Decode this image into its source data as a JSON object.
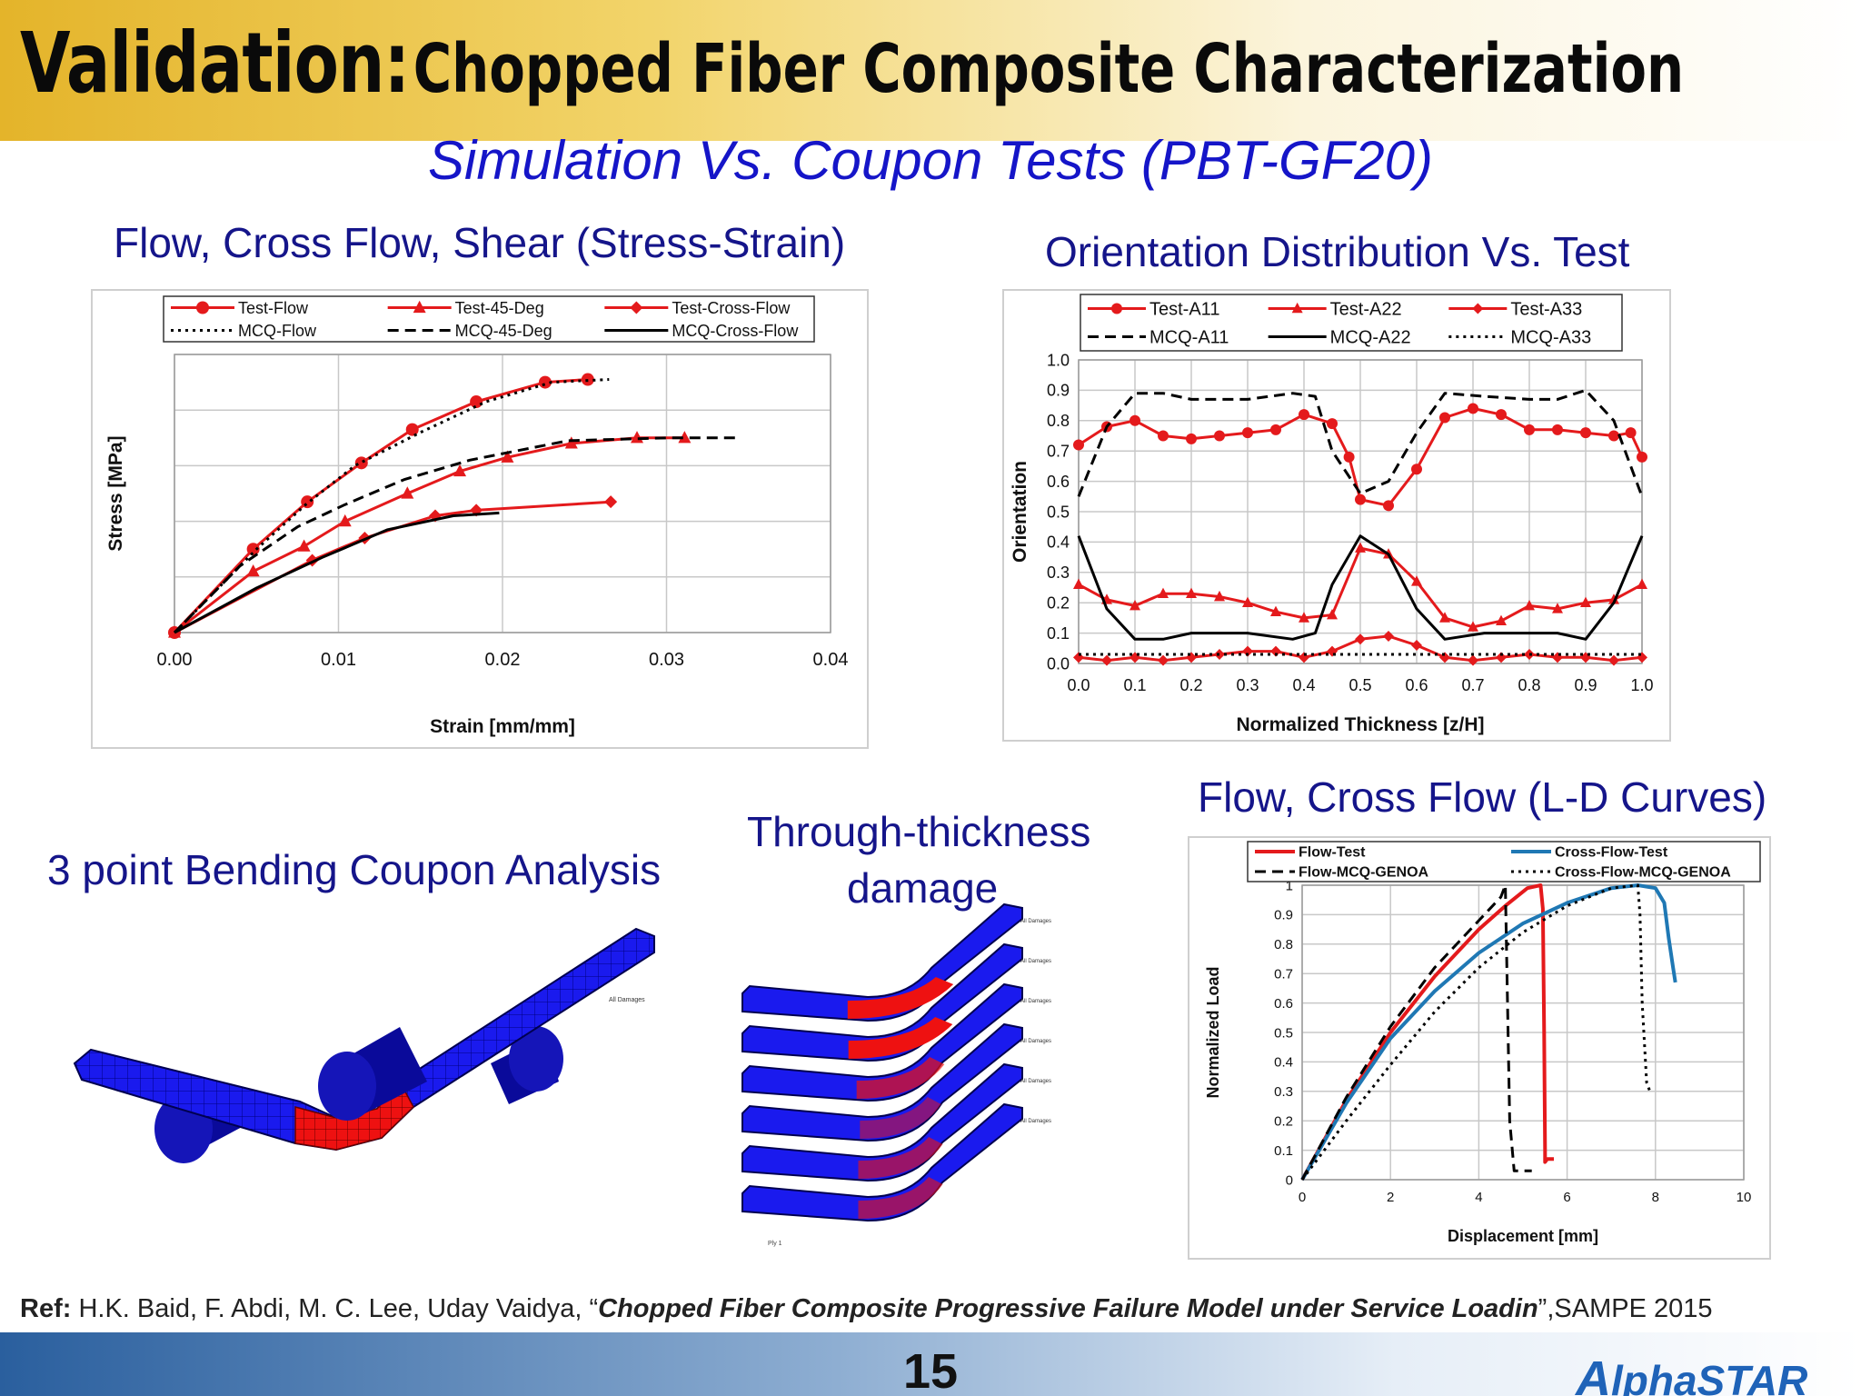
{
  "slide": {
    "title_bold": "Validation:",
    "title_rest": "Chopped Fiber Composite Characterization",
    "subtitle": "Simulation Vs. Coupon Tests (PBT-GF20)",
    "sections": {
      "stress_strain": "Flow, Cross Flow, Shear (Stress-Strain)",
      "orientation": "Orientation Distribution Vs. Test",
      "bending": "3 point Bending Coupon Analysis",
      "through_thickness_1": "Through-thickness",
      "through_thickness_2": "damage",
      "ld_curves": "Flow, Cross Flow (L-D Curves)"
    },
    "ref": {
      "label": "Ref:",
      "authors": "H.K. Baid, F. Abdi, M. C. Lee, Uday Vaidya,  “",
      "paper_title": "Chopped Fiber Composite Progressive Failure Model under Service Loadin",
      "venue": "”,SAMPE 2015"
    },
    "page_number": "15",
    "logo_text": "lphaSTAR",
    "logo_mark": "A",
    "fea_labels": {
      "damages": "All Damages",
      "ply": "Ply 1"
    }
  },
  "colors": {
    "title_blue": "#15158a",
    "subtitle_blue": "#1515c8",
    "test_red": "#e41a1c",
    "sim_black": "#000000",
    "ld_blue": "#1f78b4",
    "mesh_blue": "#1a1aee",
    "damage_red": "#ee1111"
  },
  "chart_data": [
    {
      "id": "stress_strain",
      "type": "line",
      "title": "",
      "xlabel": "Strain [mm/mm]",
      "ylabel": "Stress [MPa]",
      "xlim": [
        0,
        0.04
      ],
      "ylim": [
        0,
        1
      ],
      "x_ticks": [
        "0.00",
        "0.01",
        "0.02",
        "0.03",
        "0.04"
      ],
      "y_tick_labels_shown": false,
      "grid": true,
      "legend": "top",
      "series": [
        {
          "name": "Test-Flow",
          "style": "red-circle",
          "x": [
            0,
            0.0048,
            0.0081,
            0.0114,
            0.0145,
            0.0184,
            0.0226,
            0.0252
          ],
          "y": [
            0,
            0.3,
            0.47,
            0.61,
            0.73,
            0.83,
            0.9,
            0.91
          ]
        },
        {
          "name": "Test-45-Deg",
          "style": "red-triangle",
          "x": [
            0,
            0.0048,
            0.0079,
            0.0104,
            0.0142,
            0.0174,
            0.0203,
            0.0242,
            0.0282,
            0.0311
          ],
          "y": [
            0,
            0.22,
            0.31,
            0.4,
            0.5,
            0.58,
            0.63,
            0.68,
            0.7,
            0.7
          ]
        },
        {
          "name": "Test-Cross-Flow",
          "style": "red-diamond",
          "x": [
            0,
            0.0084,
            0.0116,
            0.0159,
            0.0184,
            0.0266
          ],
          "y": [
            0,
            0.26,
            0.34,
            0.42,
            0.44,
            0.47
          ]
        },
        {
          "name": "MCQ-Flow",
          "style": "black-dot",
          "x": [
            0,
            0.005,
            0.008,
            0.011,
            0.015,
            0.019,
            0.023,
            0.0265
          ],
          "y": [
            0,
            0.3,
            0.46,
            0.6,
            0.72,
            0.83,
            0.9,
            0.91
          ]
        },
        {
          "name": "MCQ-45-Deg",
          "style": "black-dash",
          "x": [
            0,
            0.004,
            0.0075,
            0.0104,
            0.014,
            0.018,
            0.024,
            0.03,
            0.0345
          ],
          "y": [
            0,
            0.24,
            0.38,
            0.46,
            0.55,
            0.62,
            0.69,
            0.7,
            0.7
          ]
        },
        {
          "name": "MCQ-Cross-Flow",
          "style": "black-solid",
          "x": [
            0,
            0.005,
            0.009,
            0.013,
            0.017,
            0.0198
          ],
          "y": [
            0,
            0.16,
            0.27,
            0.37,
            0.42,
            0.43
          ]
        }
      ]
    },
    {
      "id": "orientation",
      "type": "line",
      "title": "",
      "xlabel": "Normalized Thickness [z/H]",
      "ylabel": "Orientation",
      "xlim": [
        0,
        1
      ],
      "ylim": [
        0,
        1
      ],
      "x_ticks": [
        "0.0",
        "0.1",
        "0.2",
        "0.3",
        "0.4",
        "0.5",
        "0.6",
        "0.7",
        "0.8",
        "0.9",
        "1.0"
      ],
      "y_ticks": [
        "0.0",
        "0.1",
        "0.2",
        "0.3",
        "0.4",
        "0.5",
        "0.6",
        "0.7",
        "0.8",
        "0.9",
        "1.0"
      ],
      "grid": true,
      "legend": "top",
      "series": [
        {
          "name": "Test-A11",
          "style": "red-circle",
          "x": [
            0,
            0.05,
            0.1,
            0.15,
            0.2,
            0.25,
            0.3,
            0.35,
            0.4,
            0.45,
            0.48,
            0.5,
            0.55,
            0.6,
            0.65,
            0.7,
            0.75,
            0.8,
            0.85,
            0.9,
            0.95,
            0.98,
            1.0
          ],
          "y": [
            0.72,
            0.78,
            0.8,
            0.75,
            0.74,
            0.75,
            0.76,
            0.77,
            0.82,
            0.79,
            0.68,
            0.54,
            0.52,
            0.64,
            0.81,
            0.84,
            0.82,
            0.77,
            0.77,
            0.76,
            0.75,
            0.76,
            0.68
          ]
        },
        {
          "name": "Test-A22",
          "style": "red-triangle",
          "x": [
            0,
            0.05,
            0.1,
            0.15,
            0.2,
            0.25,
            0.3,
            0.35,
            0.4,
            0.45,
            0.5,
            0.55,
            0.6,
            0.65,
            0.7,
            0.75,
            0.8,
            0.85,
            0.9,
            0.95,
            1.0
          ],
          "y": [
            0.26,
            0.21,
            0.19,
            0.23,
            0.23,
            0.22,
            0.2,
            0.17,
            0.15,
            0.16,
            0.38,
            0.36,
            0.27,
            0.15,
            0.12,
            0.14,
            0.19,
            0.18,
            0.2,
            0.21,
            0.26
          ]
        },
        {
          "name": "Test-A33",
          "style": "red-diamond",
          "x": [
            0,
            0.05,
            0.1,
            0.15,
            0.2,
            0.25,
            0.3,
            0.35,
            0.4,
            0.45,
            0.5,
            0.55,
            0.6,
            0.65,
            0.7,
            0.75,
            0.8,
            0.85,
            0.9,
            0.95,
            1.0
          ],
          "y": [
            0.02,
            0.01,
            0.02,
            0.01,
            0.02,
            0.03,
            0.04,
            0.04,
            0.02,
            0.04,
            0.08,
            0.09,
            0.06,
            0.02,
            0.01,
            0.02,
            0.03,
            0.02,
            0.02,
            0.01,
            0.02
          ]
        },
        {
          "name": "MCQ-A11",
          "style": "black-dash",
          "x": [
            0,
            0.05,
            0.1,
            0.15,
            0.2,
            0.3,
            0.38,
            0.42,
            0.45,
            0.5,
            0.55,
            0.6,
            0.65,
            0.72,
            0.8,
            0.85,
            0.9,
            0.95,
            1.0
          ],
          "y": [
            0.55,
            0.78,
            0.89,
            0.89,
            0.87,
            0.87,
            0.89,
            0.88,
            0.7,
            0.56,
            0.6,
            0.76,
            0.89,
            0.88,
            0.87,
            0.87,
            0.9,
            0.8,
            0.55
          ]
        },
        {
          "name": "MCQ-A22",
          "style": "black-solid",
          "x": [
            0,
            0.05,
            0.1,
            0.15,
            0.2,
            0.3,
            0.38,
            0.42,
            0.45,
            0.5,
            0.55,
            0.6,
            0.65,
            0.72,
            0.8,
            0.85,
            0.9,
            0.95,
            1.0
          ],
          "y": [
            0.42,
            0.18,
            0.08,
            0.08,
            0.1,
            0.1,
            0.08,
            0.1,
            0.26,
            0.42,
            0.36,
            0.18,
            0.08,
            0.1,
            0.1,
            0.1,
            0.08,
            0.2,
            0.42
          ]
        },
        {
          "name": "MCQ-A33",
          "style": "black-dot",
          "x": [
            0,
            0.25,
            0.5,
            0.75,
            1.0
          ],
          "y": [
            0.03,
            0.03,
            0.03,
            0.03,
            0.03
          ]
        }
      ]
    },
    {
      "id": "ld_curves",
      "type": "line",
      "title": "",
      "xlabel": "Displacement [mm]",
      "ylabel": "Normalized Load",
      "xlim": [
        0,
        10
      ],
      "ylim": [
        0,
        1
      ],
      "x_ticks": [
        "0",
        "2",
        "4",
        "6",
        "8",
        "10"
      ],
      "y_ticks": [
        "0",
        "0.1",
        "0.2",
        "0.3",
        "0.4",
        "0.5",
        "0.6",
        "0.7",
        "0.8",
        "0.9",
        "1"
      ],
      "grid": true,
      "legend": "top",
      "series": [
        {
          "name": "Flow-Test",
          "style": "red-solid",
          "x": [
            0,
            1,
            2,
            3,
            4,
            4.6,
            5.1,
            5.4,
            5.45,
            5.48,
            5.5,
            5.5,
            5.55,
            5.7
          ],
          "y": [
            0,
            0.27,
            0.5,
            0.69,
            0.85,
            0.93,
            0.99,
            1.0,
            0.92,
            0.5,
            0.1,
            0.06,
            0.07,
            0.07
          ]
        },
        {
          "name": "Cross-Flow-Test",
          "style": "blue-solid",
          "x": [
            0,
            1,
            2,
            3,
            4,
            5,
            6,
            7,
            7.6,
            8.0,
            8.2,
            8.3,
            8.4,
            8.45
          ],
          "y": [
            0,
            0.26,
            0.48,
            0.64,
            0.77,
            0.87,
            0.94,
            0.99,
            1.0,
            0.99,
            0.94,
            0.82,
            0.72,
            0.67
          ]
        },
        {
          "name": "Flow-MCQ-GENOA",
          "style": "black-dash",
          "x": [
            0,
            1,
            2,
            3,
            4,
            4.5,
            4.6,
            4.65,
            4.7,
            4.8,
            4.9,
            5.2
          ],
          "y": [
            0,
            0.28,
            0.52,
            0.72,
            0.88,
            0.96,
            1.0,
            0.6,
            0.2,
            0.03,
            0.03,
            0.03
          ]
        },
        {
          "name": "Cross-Flow-MCQ-GENOA",
          "style": "black-dot",
          "x": [
            0,
            1,
            2,
            3,
            4,
            5,
            6,
            7,
            7.6,
            7.65,
            7.7,
            7.8,
            7.9
          ],
          "y": [
            0,
            0.2,
            0.39,
            0.57,
            0.72,
            0.84,
            0.93,
            0.99,
            1.0,
            0.9,
            0.6,
            0.33,
            0.29
          ]
        }
      ]
    }
  ]
}
